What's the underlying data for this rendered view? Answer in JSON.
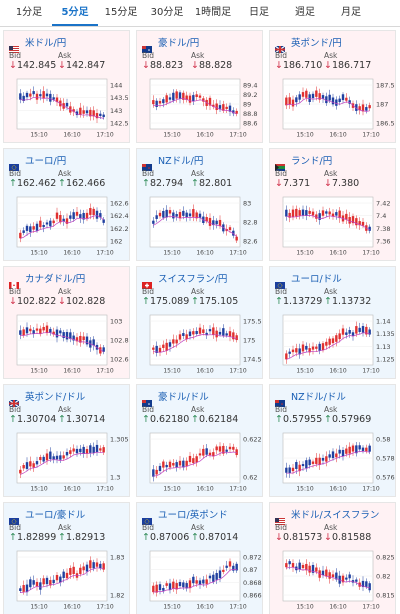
{
  "tabs": [
    {
      "label": "1分足",
      "active": false
    },
    {
      "label": "5分足",
      "active": true
    },
    {
      "label": "15分足",
      "active": false
    },
    {
      "label": "30分足",
      "active": false
    },
    {
      "label": "1時間足",
      "active": false
    },
    {
      "label": "日足",
      "active": false
    },
    {
      "label": "週足",
      "active": false
    },
    {
      "label": "月足",
      "active": false
    }
  ],
  "labels": {
    "bid": "Bid",
    "ask": "Ask"
  },
  "colors": {
    "up": "#2e8b57",
    "down": "#d0304a",
    "accent": "#1a73c8",
    "ma": "#c040c0",
    "candle_up": "#e03030",
    "candle_down": "#2040a0"
  },
  "cards": [
    {
      "pair": "米ドル/円",
      "flag": "us",
      "dir": "down",
      "bid": "142.845",
      "ask": "142.847",
      "theme": "pink",
      "y_ticks": [
        "144",
        "143.5",
        "143",
        "142.5"
      ],
      "x_ticks": [
        "15:10",
        "16:10",
        "17:10"
      ]
    },
    {
      "pair": "豪ドル/円",
      "flag": "au",
      "dir": "down",
      "bid": "88.823",
      "ask": "88.828",
      "theme": "pink",
      "y_ticks": [
        "89.4",
        "89.2",
        "89",
        "88.8",
        "88.6"
      ],
      "x_ticks": [
        "15:10",
        "16:10",
        "17:10"
      ]
    },
    {
      "pair": "英ポンド/円",
      "flag": "uk",
      "dir": "down",
      "bid": "186.710",
      "ask": "186.717",
      "theme": "pink",
      "y_ticks": [
        "187.5",
        "187",
        "186.5"
      ],
      "x_ticks": [
        "15:10",
        "16:10",
        "17:10"
      ]
    },
    {
      "pair": "ユーロ/円",
      "flag": "eu",
      "dir": "up",
      "bid": "162.462",
      "ask": "162.466",
      "theme": "blue",
      "y_ticks": [
        "162.6",
        "162.4",
        "162.2",
        "162"
      ],
      "x_ticks": [
        "15:10",
        "16:10",
        "17:10"
      ]
    },
    {
      "pair": "NZドル/円",
      "flag": "nz",
      "dir": "up",
      "bid": "82.794",
      "ask": "82.801",
      "theme": "blue",
      "y_ticks": [
        "83",
        "82.8",
        "82.6"
      ],
      "x_ticks": [
        "15:10",
        "16:10",
        "17:10"
      ]
    },
    {
      "pair": "ランド/円",
      "flag": "za",
      "dir": "down",
      "bid": "7.371",
      "ask": "7.380",
      "theme": "pink",
      "y_ticks": [
        "7.42",
        "7.4",
        "7.38",
        "7.36"
      ],
      "x_ticks": [
        "15:10",
        "16:10",
        "17:10"
      ]
    },
    {
      "pair": "カナダドル/円",
      "flag": "ca",
      "dir": "down",
      "bid": "102.822",
      "ask": "102.828",
      "theme": "pink",
      "y_ticks": [
        "103",
        "102.8",
        "102.6"
      ],
      "x_ticks": [
        "15:10",
        "16:10",
        "17:10"
      ]
    },
    {
      "pair": "スイスフラン/円",
      "flag": "ch",
      "dir": "up",
      "bid": "175.089",
      "ask": "175.105",
      "theme": "blue",
      "y_ticks": [
        "175.5",
        "175",
        "174.5"
      ],
      "x_ticks": [
        "15:10",
        "16:10",
        "17:10"
      ]
    },
    {
      "pair": "ユーロ/ドル",
      "flag": "eu",
      "dir": "up",
      "bid": "1.13729",
      "ask": "1.13732",
      "theme": "blue",
      "y_ticks": [
        "1.14",
        "1.135",
        "1.13",
        "1.125"
      ],
      "x_ticks": [
        "15:10",
        "16:10",
        "17:10"
      ]
    },
    {
      "pair": "英ポンド/ドル",
      "flag": "uk",
      "dir": "up",
      "bid": "1.30704",
      "ask": "1.30714",
      "theme": "blue",
      "y_ticks": [
        "1.305",
        "1.3"
      ],
      "x_ticks": [
        "15:10",
        "16:10",
        "17:10"
      ]
    },
    {
      "pair": "豪ドル/ドル",
      "flag": "au",
      "dir": "up",
      "bid": "0.62180",
      "ask": "0.62184",
      "theme": "blue",
      "y_ticks": [
        "0.622",
        "0.62"
      ],
      "x_ticks": [
        "15:10",
        "16:10",
        "17:10"
      ]
    },
    {
      "pair": "NZドル/ドル",
      "flag": "nz",
      "dir": "up",
      "bid": "0.57955",
      "ask": "0.57969",
      "theme": "blue",
      "y_ticks": [
        "0.58",
        "0.578",
        "0.576"
      ],
      "x_ticks": [
        "15:10",
        "16:10",
        "17:10"
      ]
    },
    {
      "pair": "ユーロ/豪ドル",
      "flag": "eu",
      "dir": "up",
      "bid": "1.82899",
      "ask": "1.82913",
      "theme": "blue",
      "y_ticks": [
        "1.83",
        "1.82"
      ],
      "x_ticks": [
        "15:10",
        "16:10",
        "17:10"
      ]
    },
    {
      "pair": "ユーロ/英ポンド",
      "flag": "eu",
      "dir": "up",
      "bid": "0.87006",
      "ask": "0.87014",
      "theme": "blue",
      "y_ticks": [
        "0.872",
        "0.87",
        "0.868",
        "0.866"
      ],
      "x_ticks": [
        "15:10",
        "16:10",
        "17:10"
      ]
    },
    {
      "pair": "米ドル/スイスフラン",
      "flag": "us",
      "dir": "down",
      "bid": "0.81573",
      "ask": "0.81588",
      "theme": "pink",
      "y_ticks": [
        "0.825",
        "0.82",
        "0.815"
      ],
      "x_ticks": [
        "15:10",
        "16:10",
        "17:10"
      ]
    }
  ]
}
